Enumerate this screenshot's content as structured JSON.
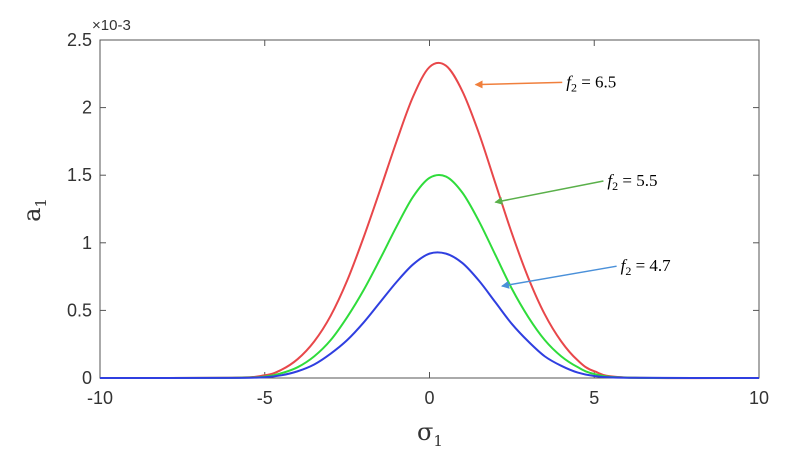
{
  "chart_data": {
    "type": "line",
    "xlabel": "σ1",
    "ylabel": "a1",
    "y_exponent_label": "×10-3",
    "xlim": [
      -10,
      10
    ],
    "ylim": [
      0,
      2.5
    ],
    "x_ticks": [
      "-10",
      "-5",
      "0",
      "5",
      "10"
    ],
    "y_ticks": [
      "0",
      "0.5",
      "1",
      "1.5",
      "2",
      "2.5"
    ],
    "grid": false,
    "series": [
      {
        "name": "f2 = 6.5",
        "color": "#e8474a",
        "x": [
          -10,
          -6,
          -5,
          -4.5,
          -4,
          -3.5,
          -3,
          -2.5,
          -2,
          -1.5,
          -1,
          -0.5,
          0,
          0.5,
          1,
          1.5,
          2,
          2.5,
          3,
          3.5,
          4,
          4.5,
          5,
          6,
          10
        ],
        "y": [
          0,
          0.002,
          0.02,
          0.06,
          0.14,
          0.27,
          0.46,
          0.72,
          1.04,
          1.39,
          1.75,
          2.08,
          2.3,
          2.31,
          2.12,
          1.81,
          1.44,
          1.07,
          0.74,
          0.47,
          0.27,
          0.13,
          0.05,
          0.004,
          0
        ]
      },
      {
        "name": "f2 = 5.5",
        "color": "#2fdc3b",
        "x": [
          -10,
          -6,
          -5,
          -4.5,
          -4,
          -3.5,
          -3,
          -2.5,
          -2,
          -1.5,
          -1,
          -0.5,
          0,
          0.5,
          1,
          1.5,
          2,
          2.5,
          3,
          3.5,
          4,
          4.5,
          5,
          6,
          10
        ],
        "y": [
          0,
          0.001,
          0.01,
          0.035,
          0.08,
          0.16,
          0.28,
          0.45,
          0.65,
          0.88,
          1.12,
          1.34,
          1.48,
          1.49,
          1.37,
          1.16,
          0.91,
          0.66,
          0.45,
          0.28,
          0.16,
          0.08,
          0.03,
          0.003,
          0
        ]
      },
      {
        "name": "f2 = 4.7",
        "color": "#2f3fe0",
        "x": [
          -10,
          -6,
          -5,
          -4.5,
          -4,
          -3.5,
          -3,
          -2.5,
          -2,
          -1.5,
          -1,
          -0.5,
          0,
          0.5,
          1,
          1.5,
          2,
          2.5,
          3,
          3.5,
          4,
          4.5,
          5,
          6,
          10
        ],
        "y": [
          0,
          0.001,
          0.006,
          0.02,
          0.05,
          0.1,
          0.18,
          0.28,
          0.41,
          0.56,
          0.71,
          0.84,
          0.92,
          0.92,
          0.85,
          0.72,
          0.56,
          0.4,
          0.27,
          0.16,
          0.09,
          0.04,
          0.015,
          0.002,
          0
        ]
      }
    ],
    "annotations": [
      {
        "label": "f2 = 6.5",
        "lhs": "f",
        "sub": "2",
        "rhs": " = 6.5",
        "arrow_color": "#f07f3c",
        "series_index": 0,
        "point": [
          1.4,
          2.17
        ],
        "text_at": [
          4.15,
          2.15
        ]
      },
      {
        "label": "f2 = 5.5",
        "lhs": "f",
        "sub": "2",
        "rhs": " = 5.5",
        "arrow_color": "#5ab04a",
        "series_index": 1,
        "point": [
          2.0,
          1.3
        ],
        "text_at": [
          5.4,
          1.42
        ]
      },
      {
        "label": "f2 = 4.7",
        "lhs": "f",
        "sub": "2",
        "rhs": " = 4.7",
        "arrow_color": "#4a90d9",
        "series_index": 2,
        "point": [
          2.2,
          0.68
        ],
        "text_at": [
          5.8,
          0.79
        ]
      }
    ]
  }
}
